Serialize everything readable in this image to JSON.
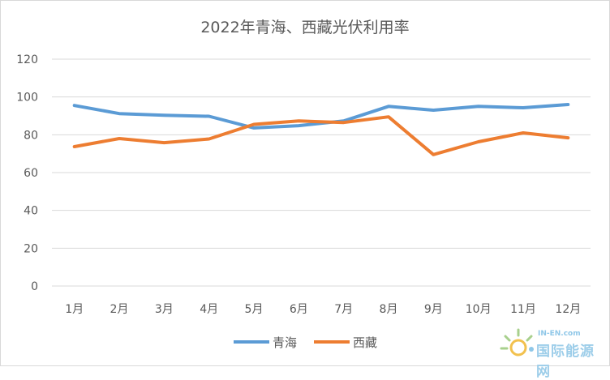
{
  "chart_data": {
    "type": "line",
    "title": "2022年青海、西藏光伏利用率",
    "categories": [
      "1月",
      "2月",
      "3月",
      "4月",
      "5月",
      "6月",
      "7月",
      "8月",
      "9月",
      "10月",
      "11月",
      "12月"
    ],
    "ylim": [
      0,
      120
    ],
    "yticks": [
      0,
      20,
      40,
      60,
      80,
      100,
      120
    ],
    "grid": true,
    "legend_position": "bottom",
    "series": [
      {
        "name": "青海",
        "color": "#5b9bd5",
        "values": [
          95.5,
          91.2,
          90.3,
          89.8,
          83.6,
          84.8,
          87.3,
          95.0,
          93.0,
          95.0,
          94.3,
          96.0
        ]
      },
      {
        "name": "西藏",
        "color": "#ed7d31",
        "values": [
          73.7,
          78.0,
          75.8,
          77.8,
          85.5,
          87.3,
          86.5,
          89.5,
          69.5,
          76.3,
          81.0,
          78.4
        ]
      }
    ]
  },
  "watermark": {
    "top": "IN-EN.com",
    "main": "国际能源网"
  }
}
